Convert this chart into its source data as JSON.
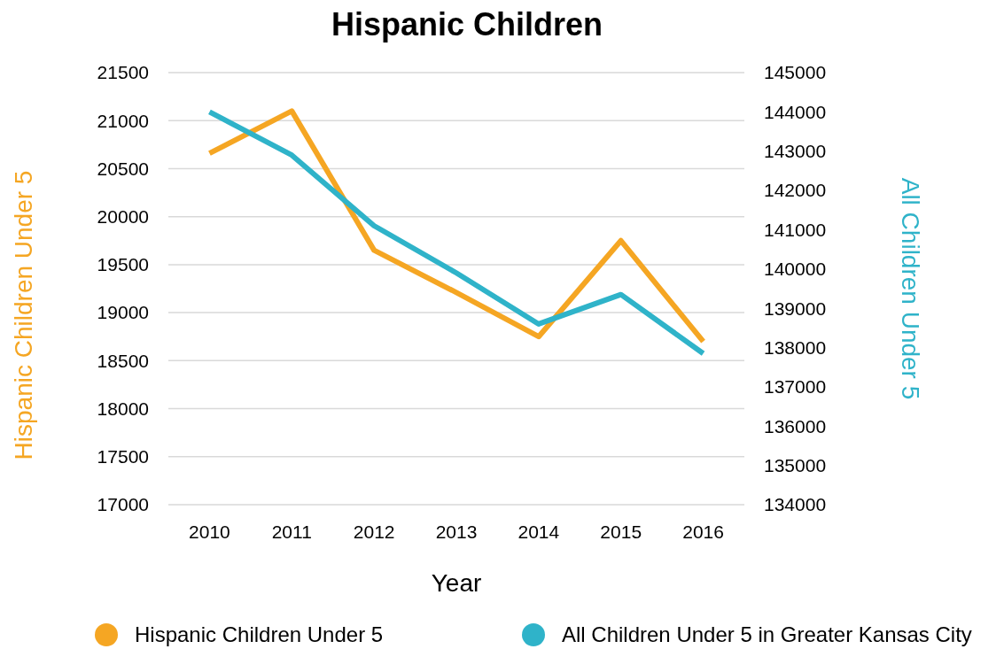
{
  "chart_data": {
    "type": "line",
    "title": "Hispanic Children",
    "xlabel": "Year",
    "ylabel": "Hispanic Children Under 5",
    "y2label": "All Children Under 5",
    "categories": [
      "2010",
      "2011",
      "2012",
      "2013",
      "2014",
      "2015",
      "2016"
    ],
    "series": [
      {
        "name": "Hispanic Children Under 5",
        "color": "#f5a623",
        "values": [
          20660,
          21100,
          19650,
          19210,
          18750,
          19750,
          18700
        ]
      },
      {
        "name": "All Children Under 5 in Greater Kansas City",
        "color": "#2fb3c9",
        "axis": "y2",
        "values": [
          144000,
          142900,
          141100,
          139900,
          138600,
          139350,
          137850
        ]
      }
    ],
    "ylim": [
      17000,
      21500
    ],
    "yticks": [
      17000,
      17500,
      18000,
      18500,
      19000,
      19500,
      20000,
      20500,
      21000,
      21500
    ],
    "y2lim": [
      134000,
      145000
    ],
    "y2ticks": [
      134000,
      135000,
      136000,
      137000,
      138000,
      139000,
      140000,
      141000,
      142000,
      143000,
      144000,
      145000
    ],
    "grid": "y",
    "legend": "bottom",
    "marker": "none",
    "line_style": "solid"
  }
}
